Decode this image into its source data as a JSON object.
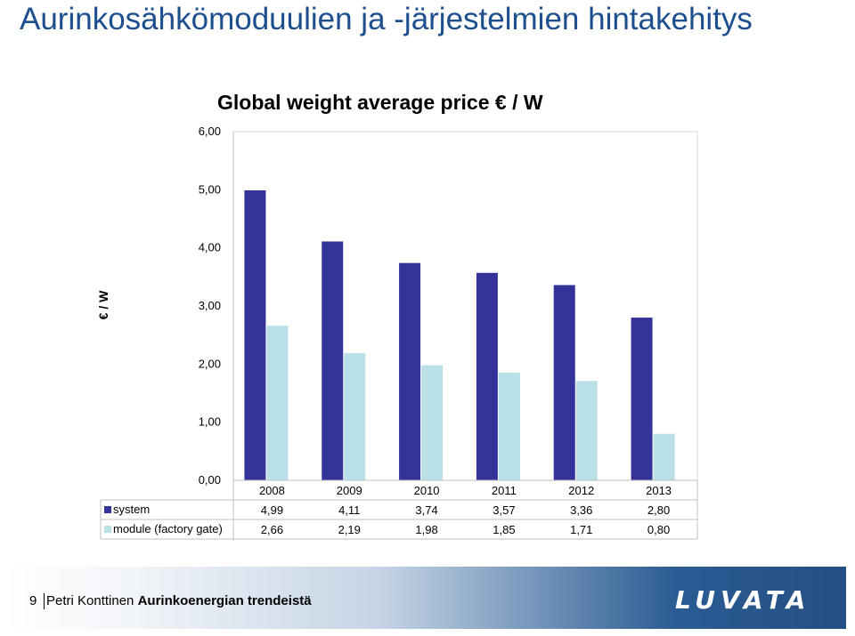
{
  "slide": {
    "title": "Aurinkosähkömoduulien ja -järjestelmien hintakehitys",
    "footer": {
      "page_number": "9",
      "author": "Petri Konttinen",
      "topic": "Aurinkoenergian trendeistä",
      "logo_text": "LUVATA"
    }
  },
  "chart_data": {
    "type": "bar",
    "title": "Global weight average price € / W",
    "xlabel": "",
    "ylabel": "€ / W",
    "ylim": [
      0,
      6
    ],
    "yticks": [
      "0,00",
      "1,00",
      "2,00",
      "3,00",
      "4,00",
      "5,00",
      "6,00"
    ],
    "categories": [
      "2008",
      "2009",
      "2010",
      "2011",
      "2012",
      "2013"
    ],
    "series": [
      {
        "name": "system",
        "color": "#333399",
        "values": [
          4.99,
          4.11,
          3.74,
          3.57,
          3.36,
          2.8
        ],
        "labels": [
          "4,99",
          "4,11",
          "3,74",
          "3,57",
          "3,36",
          "2,80"
        ]
      },
      {
        "name": "module (factory gate)",
        "color": "#b8e0e6",
        "values": [
          2.66,
          2.19,
          1.98,
          1.85,
          1.71,
          0.8
        ],
        "labels": [
          "2,66",
          "2,19",
          "1,98",
          "1,85",
          "1,71",
          "0,80"
        ]
      }
    ],
    "grid": false,
    "legend": "data-table"
  }
}
